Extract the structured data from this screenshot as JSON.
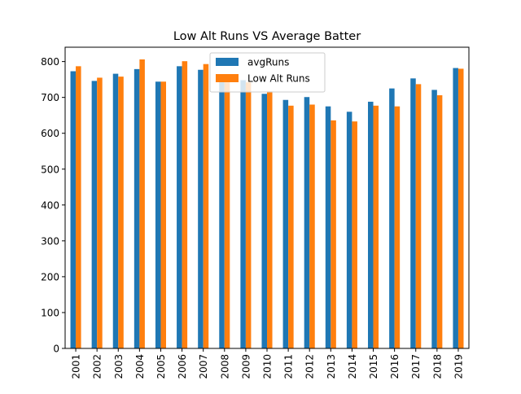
{
  "chart_data": {
    "type": "bar",
    "title": "Low Alt Runs VS Average Batter",
    "xlabel": "",
    "ylabel": "",
    "categories": [
      "2001",
      "2002",
      "2003",
      "2004",
      "2005",
      "2006",
      "2007",
      "2008",
      "2009",
      "2010",
      "2011",
      "2012",
      "2013",
      "2014",
      "2015",
      "2016",
      "2017",
      "2018",
      "2019"
    ],
    "series": [
      {
        "name": "avgRuns",
        "color": "#1f77b4",
        "values": [
          773,
          746,
          766,
          779,
          744,
          787,
          777,
          750,
          748,
          710,
          693,
          701,
          675,
          660,
          688,
          725,
          753,
          721,
          782
        ]
      },
      {
        "name": "Low Alt Runs",
        "color": "#ff7f0e",
        "values": [
          787,
          755,
          758,
          806,
          744,
          801,
          793,
          750,
          742,
          717,
          677,
          680,
          636,
          633,
          677,
          675,
          737,
          706,
          780
        ]
      }
    ],
    "ylim": [
      0,
      840
    ],
    "yticks": [
      0,
      100,
      200,
      300,
      400,
      500,
      600,
      700,
      800
    ],
    "grid": false,
    "legend_position": "upper center"
  }
}
